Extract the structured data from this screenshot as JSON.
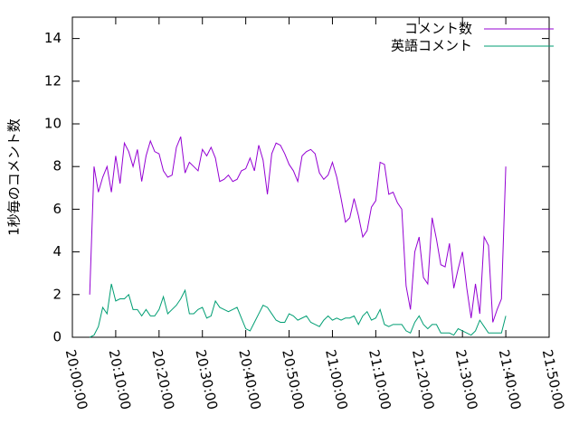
{
  "chart_data": {
    "type": "line",
    "y_label": "1秒毎のコメント数",
    "x": [
      "20:04:00",
      "20:05:00",
      "20:06:00",
      "20:07:00",
      "20:08:00",
      "20:09:00",
      "20:10:00",
      "20:11:00",
      "20:12:00",
      "20:13:00",
      "20:14:00",
      "20:15:00",
      "20:16:00",
      "20:17:00",
      "20:18:00",
      "20:19:00",
      "20:20:00",
      "20:21:00",
      "20:22:00",
      "20:23:00",
      "20:24:00",
      "20:25:00",
      "20:26:00",
      "20:27:00",
      "20:28:00",
      "20:29:00",
      "20:30:00",
      "20:31:00",
      "20:32:00",
      "20:33:00",
      "20:34:00",
      "20:35:00",
      "20:36:00",
      "20:37:00",
      "20:38:00",
      "20:39:00",
      "20:40:00",
      "20:41:00",
      "20:42:00",
      "20:43:00",
      "20:44:00",
      "20:45:00",
      "20:46:00",
      "20:47:00",
      "20:48:00",
      "20:49:00",
      "20:50:00",
      "20:51:00",
      "20:52:00",
      "20:53:00",
      "20:54:00",
      "20:55:00",
      "20:56:00",
      "20:57:00",
      "20:58:00",
      "20:59:00",
      "21:00:00",
      "21:01:00",
      "21:02:00",
      "21:03:00",
      "21:04:00",
      "21:05:00",
      "21:06:00",
      "21:07:00",
      "21:08:00",
      "21:09:00",
      "21:10:00",
      "21:11:00",
      "21:12:00",
      "21:13:00",
      "21:14:00",
      "21:15:00",
      "21:16:00",
      "21:17:00",
      "21:18:00",
      "21:19:00",
      "21:20:00",
      "21:21:00",
      "21:22:00",
      "21:23:00",
      "21:24:00",
      "21:25:00",
      "21:26:00",
      "21:27:00",
      "21:28:00",
      "21:29:00",
      "21:30:00",
      "21:31:00",
      "21:32:00",
      "21:33:00",
      "21:34:00",
      "21:35:00",
      "21:36:00",
      "21:37:00",
      "21:38:00",
      "21:39:00",
      "21:40:00"
    ],
    "series": [
      {
        "name": "コメント数",
        "color": "#9400d3",
        "values": [
          2.0,
          8.0,
          6.8,
          7.5,
          8.0,
          6.8,
          8.5,
          7.2,
          9.1,
          8.7,
          8.0,
          8.8,
          7.3,
          8.5,
          9.2,
          8.7,
          8.6,
          7.8,
          7.5,
          7.6,
          8.9,
          9.4,
          7.7,
          8.2,
          8.0,
          7.8,
          8.8,
          8.5,
          8.9,
          8.4,
          7.3,
          7.4,
          7.6,
          7.3,
          7.4,
          7.8,
          7.9,
          8.4,
          7.8,
          9.0,
          8.3,
          6.7,
          8.6,
          9.1,
          9.0,
          8.6,
          8.1,
          7.8,
          7.3,
          8.5,
          8.7,
          8.8,
          8.6,
          7.7,
          7.4,
          7.6,
          8.2,
          7.5,
          6.5,
          5.4,
          5.6,
          6.5,
          5.7,
          4.7,
          5.0,
          6.1,
          6.4,
          8.2,
          8.1,
          6.7,
          6.8,
          6.3,
          6.0,
          2.4,
          1.3,
          4.0,
          4.7,
          2.8,
          2.5,
          5.6,
          4.6,
          3.4,
          3.3,
          4.4,
          2.3,
          3.2,
          4.0,
          2.3,
          0.9,
          2.5,
          1.1,
          4.7,
          4.3,
          0.7,
          1.3,
          1.8,
          8.0
        ]
      },
      {
        "name": "英語コメント",
        "color": "#009e73",
        "values": [
          0.0,
          0.1,
          0.5,
          1.4,
          1.1,
          2.5,
          1.7,
          1.8,
          1.8,
          2.0,
          1.3,
          1.3,
          1.0,
          1.3,
          1.0,
          1.0,
          1.3,
          1.9,
          1.1,
          1.3,
          1.5,
          1.8,
          2.2,
          1.1,
          1.1,
          1.3,
          1.4,
          0.9,
          1.0,
          1.7,
          1.4,
          1.3,
          1.2,
          1.3,
          1.4,
          0.9,
          0.4,
          0.3,
          0.7,
          1.1,
          1.5,
          1.4,
          1.1,
          0.8,
          0.7,
          0.7,
          1.1,
          1.0,
          0.8,
          0.9,
          1.0,
          0.7,
          0.6,
          0.5,
          0.8,
          1.0,
          0.8,
          0.9,
          0.8,
          0.9,
          0.9,
          1.0,
          0.6,
          1.0,
          1.2,
          0.8,
          0.9,
          1.3,
          0.6,
          0.5,
          0.6,
          0.6,
          0.6,
          0.3,
          0.2,
          0.7,
          1.0,
          0.6,
          0.4,
          0.6,
          0.6,
          0.2,
          0.2,
          0.2,
          0.1,
          0.4,
          0.3,
          0.2,
          0.1,
          0.3,
          0.8,
          0.5,
          0.2,
          0.2,
          0.2,
          0.2,
          1.0
        ]
      }
    ],
    "xlim": [
      "20:00:00",
      "21:50:00"
    ],
    "xticks": [
      "20:00:00",
      "20:10:00",
      "20:20:00",
      "20:30:00",
      "20:40:00",
      "20:50:00",
      "21:00:00",
      "21:10:00",
      "21:20:00",
      "21:30:00",
      "21:40:00",
      "21:50:00"
    ],
    "ylim": [
      0,
      15
    ],
    "yticks": [
      0,
      2,
      4,
      6,
      8,
      10,
      12,
      14
    ],
    "legend": "top-right"
  }
}
